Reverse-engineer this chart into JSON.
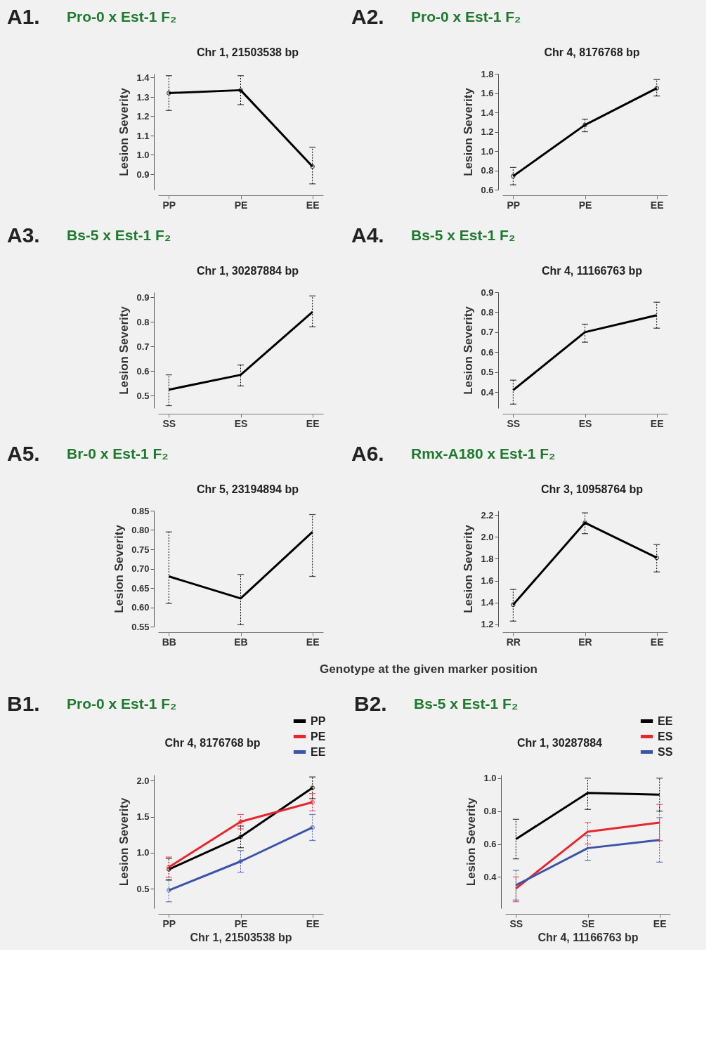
{
  "chart_data": [
    {
      "type": "line",
      "annotations": [
        "A1."
      ],
      "title": "Pro-0 x Est-1 F₂",
      "subtitle": "Chr 1, 21503538 bp",
      "ylabel": "Lesion Severity",
      "categories": [
        "PP",
        "PE",
        "EE"
      ],
      "marker": "circle",
      "legend": false,
      "grid": false,
      "ylim": [
        0.82,
        1.42
      ],
      "yticks": [
        0.9,
        {
          "value": 1,
          "label": "1.0"
        },
        1.1,
        1.2,
        1.3,
        1.4
      ],
      "series": [
        {
          "color": "#000000",
          "values": [
            1.32,
            1.335,
            0.94
          ],
          "errors": [
            [
              1.23,
              1.41
            ],
            [
              1.26,
              1.41
            ],
            [
              0.85,
              1.04
            ]
          ]
        }
      ]
    },
    {
      "type": "line",
      "annotations": [
        "A2."
      ],
      "title": "Pro-0 x Est-1 F₂",
      "subtitle": "Chr 4, 8176768 bp",
      "ylabel": "Lesion Severity",
      "categories": [
        "PP",
        "PE",
        "EE"
      ],
      "marker": "circle",
      "legend": false,
      "grid": false,
      "ylim": [
        0.6,
        1.8
      ],
      "yticks": [
        0.6,
        0.8,
        {
          "value": 1,
          "label": "1.0"
        },
        1.2,
        1.4,
        1.6,
        1.8
      ],
      "series": [
        {
          "color": "#000000",
          "values": [
            0.74,
            1.27,
            1.65
          ],
          "errors": [
            [
              0.65,
              0.83
            ],
            [
              1.2,
              1.33
            ],
            [
              1.57,
              1.74
            ]
          ]
        }
      ]
    },
    {
      "type": "line",
      "annotations": [
        "A3."
      ],
      "title": "Bs-5 x Est-1 F₂",
      "subtitle": "Chr 1, 30287884 bp",
      "ylabel": "Lesion Severity",
      "categories": [
        "SS",
        "ES",
        "EE"
      ],
      "marker": "none",
      "legend": false,
      "grid": false,
      "ylim": [
        0.45,
        0.92
      ],
      "yticks": [
        0.5,
        0.6,
        0.7,
        0.8,
        0.9
      ],
      "series": [
        {
          "color": "#000000",
          "values": [
            0.525,
            0.585,
            0.84
          ],
          "errors": [
            [
              0.46,
              0.585
            ],
            [
              0.54,
              0.625
            ],
            [
              0.78,
              0.905
            ]
          ]
        }
      ]
    },
    {
      "type": "line",
      "annotations": [
        "A4."
      ],
      "title": "Bs-5 x Est-1 F₂",
      "subtitle": "Chr 4, 11166763 bp",
      "ylabel": "Lesion Severity",
      "categories": [
        "SS",
        "ES",
        "EE"
      ],
      "marker": "none",
      "legend": false,
      "grid": false,
      "ylim": [
        0.32,
        0.9
      ],
      "yticks": [
        0.4,
        0.5,
        0.6,
        0.7,
        0.8,
        0.9
      ],
      "series": [
        {
          "color": "#000000",
          "values": [
            0.41,
            0.7,
            0.785
          ],
          "errors": [
            [
              0.34,
              0.46
            ],
            [
              0.65,
              0.74
            ],
            [
              0.72,
              0.85
            ]
          ]
        }
      ]
    },
    {
      "type": "line",
      "annotations": [
        "A5."
      ],
      "title": "Br-0 x Est-1 F₂",
      "subtitle": "Chr 5, 23194894 bp",
      "ylabel": "Lesion Severity",
      "xlabel": "Genotype at the given marker position",
      "categories": [
        "BB",
        "EB",
        "EE"
      ],
      "marker": "none",
      "legend": false,
      "grid": false,
      "ylim": [
        0.55,
        0.85
      ],
      "yticks": [
        0.55,
        {
          "value": 0.6,
          "label": "0.60"
        },
        0.65,
        {
          "value": 0.7,
          "label": "0.70"
        },
        0.75,
        {
          "value": 0.8,
          "label": "0.80"
        },
        0.85
      ],
      "series": [
        {
          "color": "#000000",
          "values": [
            0.68,
            0.623,
            0.795
          ],
          "errors": [
            [
              0.61,
              0.795
            ],
            [
              0.555,
              0.685
            ],
            [
              0.68,
              0.84
            ]
          ]
        }
      ]
    },
    {
      "type": "line",
      "annotations": [
        "A6."
      ],
      "title": "Rmx-A180 x Est-1 F₂",
      "subtitle": "Chr 3, 10958764 bp",
      "ylabel": "Lesion Severity",
      "categories": [
        "RR",
        "ER",
        "EE"
      ],
      "marker": "circle",
      "legend": false,
      "grid": false,
      "ylim": [
        1.18,
        2.24
      ],
      "yticks": [
        1.2,
        1.4,
        1.6,
        1.8,
        {
          "value": 2,
          "label": "2.0"
        },
        2.2
      ],
      "series": [
        {
          "color": "#000000",
          "values": [
            1.38,
            2.13,
            1.81
          ],
          "errors": [
            [
              1.23,
              1.52
            ],
            [
              2.03,
              2.22
            ],
            [
              1.68,
              1.93
            ]
          ]
        }
      ]
    },
    {
      "type": "line",
      "annotations": [
        "B1."
      ],
      "title": "Pro-0 x Est-1 F₂",
      "subtitle": "Chr 4, 8176768 bp",
      "ylabel": "Lesion Severity",
      "xlabel": "Chr 1, 21503538 bp",
      "categories": [
        "PP",
        "PE",
        "EE"
      ],
      "marker": "circle",
      "legend": "top right",
      "grid": false,
      "ylim": [
        0.23,
        2.08
      ],
      "yticks": [
        0.5,
        {
          "value": 1,
          "label": "1.0"
        },
        1.5,
        {
          "value": 2,
          "label": "2.0"
        }
      ],
      "series": [
        {
          "name": "PP",
          "color": "#000000",
          "values": [
            0.77,
            1.22,
            1.9
          ],
          "errors": [
            [
              0.62,
              0.92
            ],
            [
              1.07,
              1.37
            ],
            [
              1.75,
              2.05
            ]
          ]
        },
        {
          "name": "PE",
          "color": "#e8262b",
          "values": [
            0.8,
            1.43,
            1.7
          ],
          "errors": [
            [
              0.66,
              0.94
            ],
            [
              1.33,
              1.53
            ],
            [
              1.58,
              1.82
            ]
          ]
        },
        {
          "name": "EE",
          "color": "#3a55a8",
          "values": [
            0.48,
            0.88,
            1.35
          ],
          "errors": [
            [
              0.32,
              0.63
            ],
            [
              0.73,
              1.03
            ],
            [
              1.17,
              1.53
            ]
          ]
        }
      ]
    },
    {
      "type": "line",
      "annotations": [
        "B2."
      ],
      "title": "Bs-5 x Est-1 F₂",
      "subtitle": "Chr 1, 30287884",
      "ylabel": "Lesion Severity",
      "xlabel": "Chr 4, 11166763 bp",
      "categories": [
        "SS",
        "SE",
        "EE"
      ],
      "marker": "none",
      "legend": "top right",
      "grid": false,
      "ylim": [
        0.21,
        1.02
      ],
      "yticks": [
        0.4,
        0.6,
        0.8,
        {
          "value": 1,
          "label": "1.0"
        }
      ],
      "series": [
        {
          "name": "EE",
          "color": "#000000",
          "values": [
            0.63,
            0.91,
            0.9
          ],
          "errors": [
            [
              0.51,
              0.75
            ],
            [
              0.81,
              1.0
            ],
            [
              0.8,
              1.0
            ]
          ]
        },
        {
          "name": "ES",
          "color": "#e8262b",
          "values": [
            0.33,
            0.675,
            0.73
          ],
          "errors": [
            [
              0.25,
              0.4
            ],
            [
              0.6,
              0.73
            ],
            [
              0.62,
              0.84
            ]
          ]
        },
        {
          "name": "SS",
          "color": "#3a55a8",
          "values": [
            0.35,
            0.575,
            0.625
          ],
          "errors": [
            [
              0.26,
              0.44
            ],
            [
              0.5,
              0.65
            ],
            [
              0.49,
              0.76
            ]
          ]
        }
      ]
    }
  ]
}
